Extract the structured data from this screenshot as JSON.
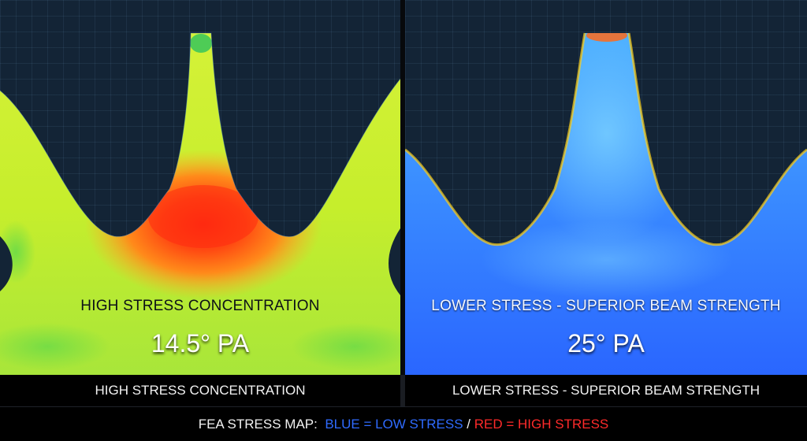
{
  "left_panel": {
    "overlay_title": "HIGH STRESS CONCENTRATION",
    "pressure_angle": "14.5° PA",
    "caption": "HIGH STRESS CONCENTRATION"
  },
  "right_panel": {
    "overlay_title": "LOWER STRESS - SUPERIOR BEAM STRENGTH",
    "pressure_angle": "25° PA",
    "caption": "LOWER STRESS - SUPERIOR BEAM STRENGTH"
  },
  "legend": {
    "prefix": "FEA STRESS MAP:",
    "low": "BLUE = LOW STRESS",
    "separator": "/",
    "high": "RED = HIGH STRESS"
  },
  "colors": {
    "low_stress": "#1f5bff",
    "high_stress": "#ff1f1f",
    "background": "#132436"
  }
}
